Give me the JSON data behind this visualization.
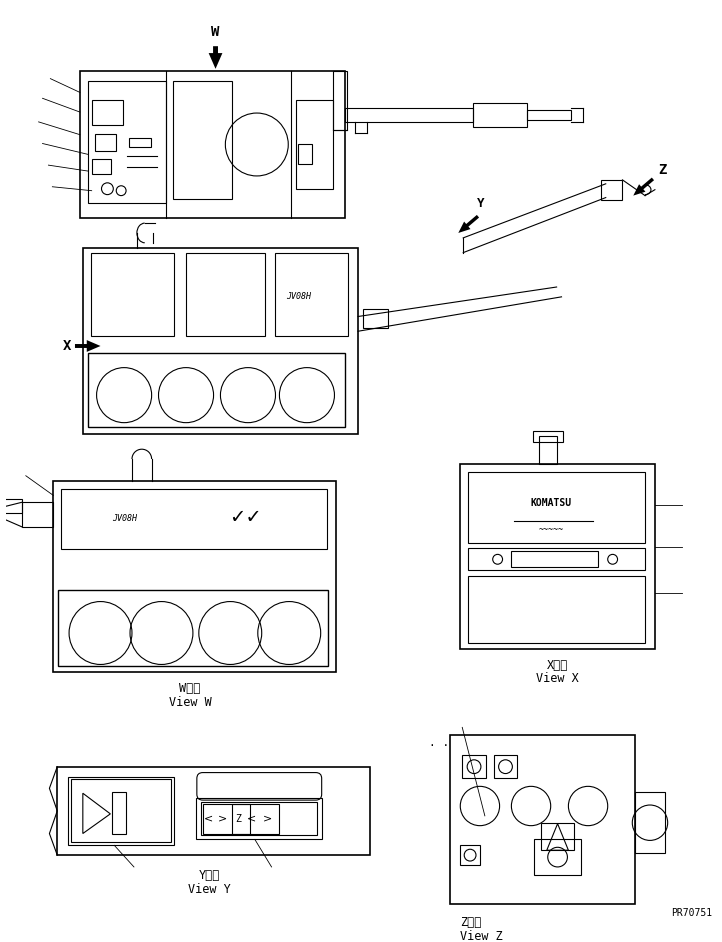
{
  "bg_color": "#ffffff",
  "line_color": "#000000",
  "watermark": "PR70751",
  "view_labels": {
    "W": "W　視\nView W",
    "X": "X　視\nView X",
    "Y": "Y　視\nView Y",
    "Z": "Z　視\nView Z"
  }
}
